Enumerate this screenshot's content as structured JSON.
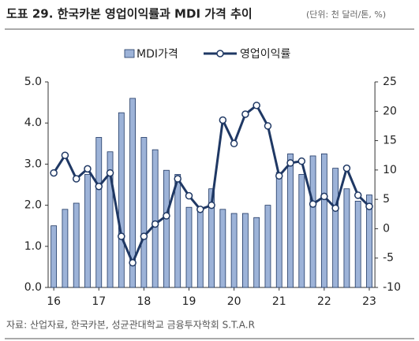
{
  "chart_data": {
    "type": "bar-line",
    "title": "도표 29. 한국카본 영업이익률과 MDI 가격 추이",
    "subtitle": "(단위: 천 달러/톤, %)",
    "source": "자료: 산업자료, 한국카본, 성균관대학교 금융투자학회 S.T.A.R",
    "categories": [
      "16",
      null,
      null,
      null,
      "17",
      null,
      null,
      null,
      "18",
      null,
      null,
      null,
      "19",
      null,
      null,
      null,
      "20",
      null,
      null,
      null,
      "21",
      null,
      null,
      null,
      "22",
      null,
      null,
      null,
      "23"
    ],
    "series": [
      {
        "name": "MDI가격",
        "type": "bar",
        "color": "#9db3d8",
        "values": [
          1.5,
          1.9,
          2.05,
          2.75,
          3.65,
          3.3,
          4.25,
          4.6,
          3.65,
          3.35,
          2.85,
          2.75,
          1.95,
          1.95,
          2.4,
          1.9,
          1.8,
          1.8,
          1.7,
          2.0,
          2.8,
          3.25,
          2.75,
          3.2,
          3.25,
          2.9,
          2.4,
          2.1,
          2.25
        ]
      },
      {
        "name": "영업이익률",
        "type": "line",
        "axis": "y2",
        "color": "#1f3864",
        "values": [
          9.5,
          12.5,
          8.5,
          10.2,
          7.2,
          9.5,
          -1.3,
          -5.8,
          -1.3,
          0.8,
          2.2,
          8.5,
          5.6,
          3.3,
          4.0,
          18.5,
          14.5,
          19.5,
          21.0,
          17.5,
          9.0,
          11.2,
          11.5,
          4.2,
          5.5,
          3.5,
          10.3,
          5.7,
          3.8
        ]
      }
    ],
    "ylim": [
      0,
      5
    ],
    "yticks": [
      {
        "value": 0,
        "label": "0.0"
      },
      {
        "value": 1,
        "label": "1.0"
      },
      {
        "value": 2,
        "label": "2.0"
      },
      {
        "value": 3,
        "label": "3.0"
      },
      {
        "value": 4,
        "label": "4.0"
      },
      {
        "value": 5,
        "label": "5.0"
      }
    ],
    "y2lim": [
      -10,
      25
    ],
    "y2ticks": [
      -10,
      -5,
      0,
      5,
      10,
      15,
      20,
      25
    ],
    "legend": "top"
  }
}
